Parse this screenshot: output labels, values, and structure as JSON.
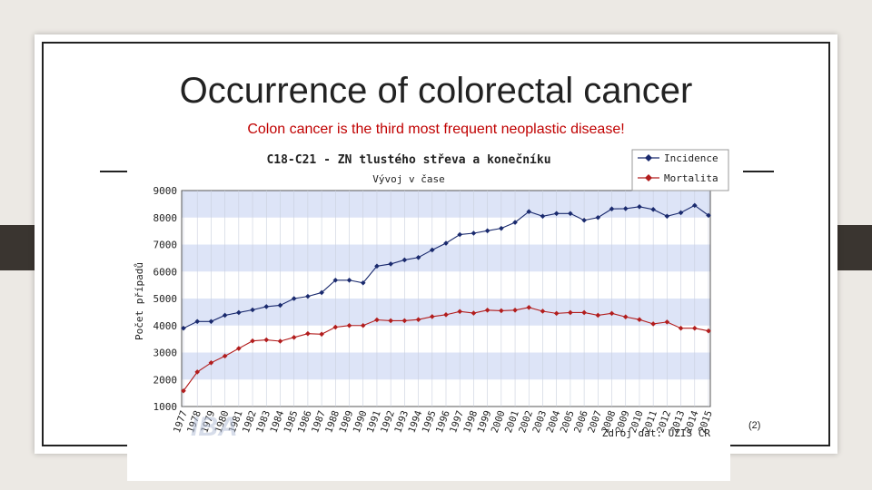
{
  "slide": {
    "title": "Occurrence of colorectal cancer",
    "subtitle": "Colon cancer is the third most frequent neoplastic disease!",
    "reference": "(2)"
  },
  "colors": {
    "incidence": "#1a2a6e",
    "mortality": "#b21d1d",
    "band": "#dde4f7",
    "subtitle": "#c00000"
  },
  "chart_data": {
    "type": "line",
    "title": "C18-C21 - ZN tlustého střeva a konečníku",
    "subtitle": "Vývoj v čase",
    "xlabel": "",
    "ylabel": "Počet případů",
    "source": "Zdroj dat: ÚZIS ČR",
    "watermark": "IBA",
    "legend_position": "top-right",
    "ylim": [
      1000,
      9000
    ],
    "yticks": [
      "9000",
      "8000",
      "7000",
      "6000",
      "5000",
      "4000",
      "3000",
      "2000",
      "1000"
    ],
    "categories": [
      "1977",
      "1978",
      "1979",
      "1980",
      "1981",
      "1982",
      "1983",
      "1984",
      "1985",
      "1986",
      "1987",
      "1988",
      "1989",
      "1990",
      "1991",
      "1992",
      "1993",
      "1994",
      "1995",
      "1996",
      "1997",
      "1998",
      "1999",
      "2000",
      "2001",
      "2002",
      "2003",
      "2004",
      "2005",
      "2006",
      "2007",
      "2008",
      "2009",
      "2010",
      "2011",
      "2012",
      "2013",
      "2014",
      "2015"
    ],
    "series": [
      {
        "name": "Incidence",
        "values": [
          3900,
          4150,
          4150,
          4380,
          4480,
          4580,
          4700,
          4750,
          5000,
          5080,
          5220,
          5680,
          5680,
          5580,
          6200,
          6280,
          6430,
          6520,
          6800,
          7050,
          7370,
          7420,
          7510,
          7600,
          7820,
          8220,
          8050,
          8150,
          8150,
          7900,
          8000,
          8320,
          8330,
          8400,
          8300,
          8050,
          8180,
          8450,
          8080
        ]
      },
      {
        "name": "Mortalita",
        "values": [
          1580,
          2280,
          2620,
          2870,
          3150,
          3430,
          3470,
          3420,
          3560,
          3700,
          3680,
          3940,
          4000,
          4000,
          4210,
          4180,
          4180,
          4220,
          4330,
          4400,
          4520,
          4460,
          4570,
          4550,
          4570,
          4670,
          4530,
          4450,
          4480,
          4480,
          4380,
          4450,
          4320,
          4220,
          4060,
          4130,
          3900,
          3900,
          3800
        ]
      }
    ]
  }
}
